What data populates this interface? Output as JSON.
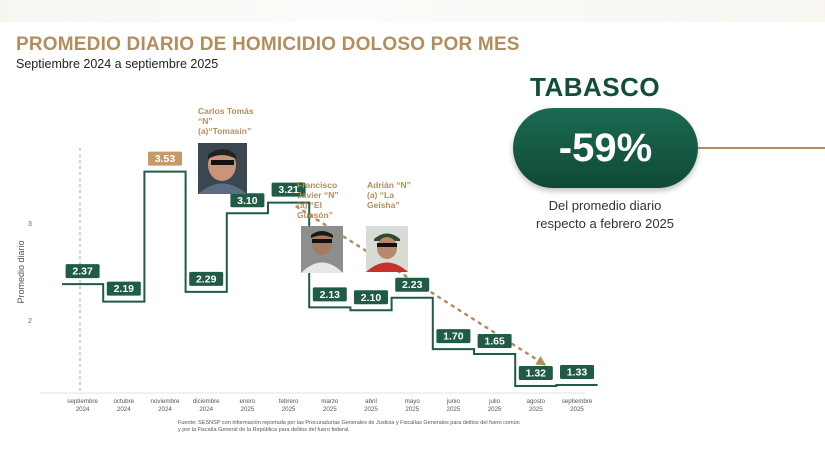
{
  "header": {
    "title": "PROMEDIO DIARIO DE HOMICIDIO DOLOSO POR MES",
    "subtitle": "Septiembre 2024 a septiembre 2025"
  },
  "summary": {
    "state": "TABASCO",
    "change": "-59%",
    "caption_line1": "Del promedio diario",
    "caption_line2": "respecto a febrero 2025"
  },
  "annotations": {
    "person1": [
      "Carlos Tomás",
      "“N”",
      "(a)“Tomasín”"
    ],
    "person2": [
      "Francisco",
      "Javier “N”",
      "(a) “El",
      "Guasón”"
    ],
    "person3": [
      "Adrián “N”",
      "(a) “La",
      "Geisha”"
    ]
  },
  "footnote": {
    "line1": "Fuente: SESNSP con información reportada por las Procuradurías Generales de Justicia y Fiscalías Generales para delitos del fuero común",
    "line2": "y por la Fiscalía General de la República para delitos del fuero federal."
  },
  "colors": {
    "title_gold": "#b38e5d",
    "series_green": "#1f5b46",
    "highlight_gold": "#c49b67"
  },
  "chart_data": {
    "type": "line",
    "subtype": "step",
    "ylabel": "Promedio diario",
    "ylim": [
      1.1,
      3.9
    ],
    "yticks": [
      2,
      3
    ],
    "categories": [
      [
        "septiembre",
        "2024"
      ],
      [
        "octubre",
        "2024"
      ],
      [
        "noviembre",
        "2024"
      ],
      [
        "diciembre",
        "2024"
      ],
      [
        "enero",
        "2025"
      ],
      [
        "febrero",
        "2025"
      ],
      [
        "marzo",
        "2025"
      ],
      [
        "abril",
        "2025"
      ],
      [
        "mayo",
        "2025"
      ],
      [
        "junio",
        "2025"
      ],
      [
        "julio",
        "2025"
      ],
      [
        "agosto",
        "2025"
      ],
      [
        "septiembre",
        "2025"
      ]
    ],
    "values": [
      2.37,
      2.19,
      3.53,
      2.29,
      3.1,
      3.21,
      2.13,
      2.1,
      2.23,
      1.7,
      1.65,
      1.32,
      1.33
    ],
    "labels": [
      "2.37",
      "2.19",
      "3.53",
      "2.29",
      "3.10",
      "3.21",
      "2.13",
      "2.10",
      "2.23",
      "1.70",
      "1.65",
      "1.32",
      "1.33"
    ],
    "highlight_index": 2,
    "trend_arrow": {
      "from_index": 5,
      "to_index": 11
    }
  }
}
